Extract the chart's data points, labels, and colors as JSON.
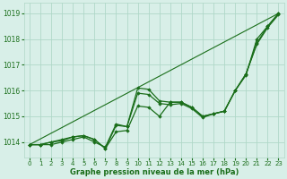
{
  "background_color": "#d8efe8",
  "grid_color": "#b0d8c8",
  "line_color": "#1a6e1a",
  "marker_color": "#1a6e1a",
  "title": "Graphe pression niveau de la mer (hPa)",
  "ylim": [
    1013.4,
    1019.4
  ],
  "xlim": [
    -0.5,
    23.5
  ],
  "yticks": [
    1014,
    1015,
    1016,
    1017,
    1018,
    1019
  ],
  "xticks": [
    0,
    1,
    2,
    3,
    4,
    5,
    6,
    7,
    8,
    9,
    10,
    11,
    12,
    13,
    14,
    15,
    16,
    17,
    18,
    19,
    20,
    21,
    22,
    23
  ],
  "series": [
    {
      "x": [
        0,
        1,
        2,
        3,
        4,
        5,
        6,
        7,
        8,
        9,
        10,
        11,
        12,
        13,
        14,
        15,
        16,
        17,
        18,
        19,
        20,
        21,
        22,
        23
      ],
      "y": [
        1013.9,
        1013.9,
        1013.9,
        1014.0,
        1014.1,
        1014.2,
        1014.0,
        1013.8,
        1014.7,
        1014.6,
        1016.1,
        1016.05,
        1015.6,
        1015.55,
        1015.55,
        1015.35,
        1015.0,
        1015.1,
        1015.2,
        1016.0,
        1016.6,
        1018.0,
        1018.5,
        1019.0
      ],
      "lw": 0.9,
      "marker": true
    },
    {
      "x": [
        0,
        1,
        2,
        3,
        4,
        5,
        6,
        7,
        8,
        9,
        10,
        11,
        12,
        13,
        14,
        15,
        16,
        17,
        18,
        19,
        20,
        21,
        22,
        23
      ],
      "y": [
        1013.9,
        1013.9,
        1014.0,
        1014.05,
        1014.2,
        1014.25,
        1014.1,
        1013.75,
        1014.65,
        1014.6,
        1015.9,
        1015.85,
        1015.5,
        1015.45,
        1015.5,
        1015.3,
        1014.95,
        1015.1,
        1015.2,
        1016.0,
        1016.65,
        1017.8,
        1018.45,
        1018.95
      ],
      "lw": 0.9,
      "marker": true
    },
    {
      "x": [
        0,
        1,
        2,
        3,
        4,
        5,
        6,
        7,
        8,
        9,
        10,
        11,
        12,
        13,
        14,
        15,
        16,
        17,
        18,
        19,
        20,
        21,
        22,
        23
      ],
      "y": [
        1013.9,
        1013.9,
        1014.0,
        1014.1,
        1014.2,
        1014.25,
        1014.1,
        1013.75,
        1014.4,
        1014.45,
        1015.4,
        1015.35,
        1015.0,
        1015.55,
        1015.55,
        1015.35,
        1015.0,
        1015.1,
        1015.2,
        1016.0,
        1016.65,
        1017.85,
        1018.5,
        1019.0
      ],
      "lw": 0.9,
      "marker": true
    },
    {
      "x": [
        0,
        23
      ],
      "y": [
        1013.9,
        1019.0
      ],
      "lw": 0.8,
      "marker": false
    }
  ]
}
